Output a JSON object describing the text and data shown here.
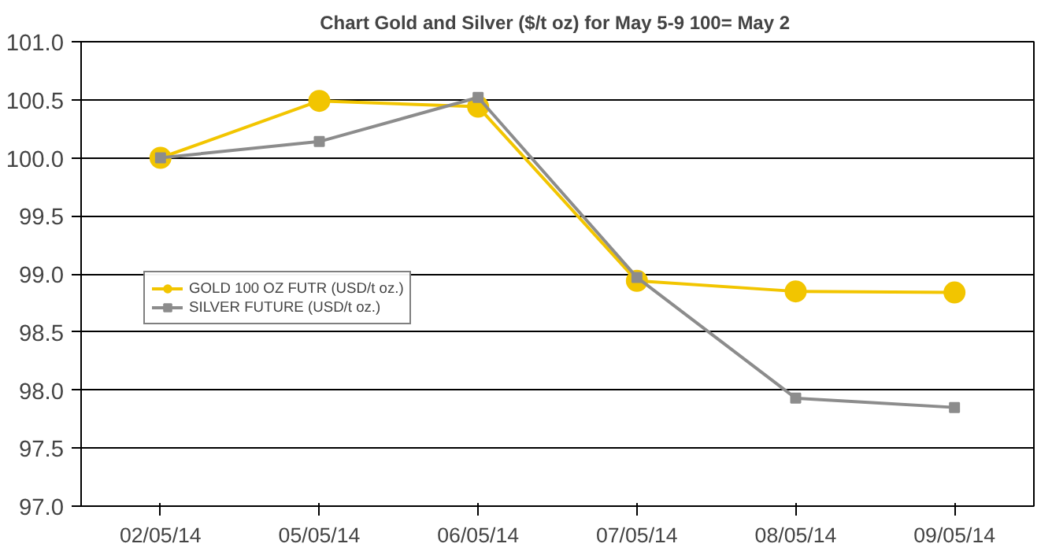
{
  "chart_data": {
    "type": "line",
    "title": "Chart Gold and Silver ($/t oz) for May 5-9  100= May 2",
    "categories": [
      "02/05/14",
      "05/05/14",
      "06/05/14",
      "07/05/14",
      "08/05/14",
      "09/05/14"
    ],
    "series": [
      {
        "name": "GOLD 100 OZ FUTR (USD/t oz.)",
        "color": "#f2c500",
        "marker": "circle",
        "values": [
          100.0,
          100.49,
          100.44,
          98.94,
          98.85,
          98.84
        ]
      },
      {
        "name": "SILVER FUTURE (USD/t oz.)",
        "color": "#8c8c8c",
        "marker": "square",
        "values": [
          100.0,
          100.14,
          100.52,
          98.97,
          97.93,
          97.85
        ]
      }
    ],
    "ylim": [
      97.0,
      101.0
    ],
    "yticks": [
      {
        "value": 97.0,
        "label": "97.0"
      },
      {
        "value": 97.5,
        "label": "97.5"
      },
      {
        "value": 98.0,
        "label": "98.0"
      },
      {
        "value": 98.5,
        "label": "98.5"
      },
      {
        "value": 99.0,
        "label": "99.0"
      },
      {
        "value": 99.5,
        "label": "99.5"
      },
      {
        "value": 100.0,
        "label": "100.0"
      },
      {
        "value": 100.5,
        "label": "100.5"
      },
      {
        "value": 101.0,
        "label": "101.0"
      }
    ],
    "grid": "y",
    "legend": "left",
    "line_style": "solid"
  }
}
